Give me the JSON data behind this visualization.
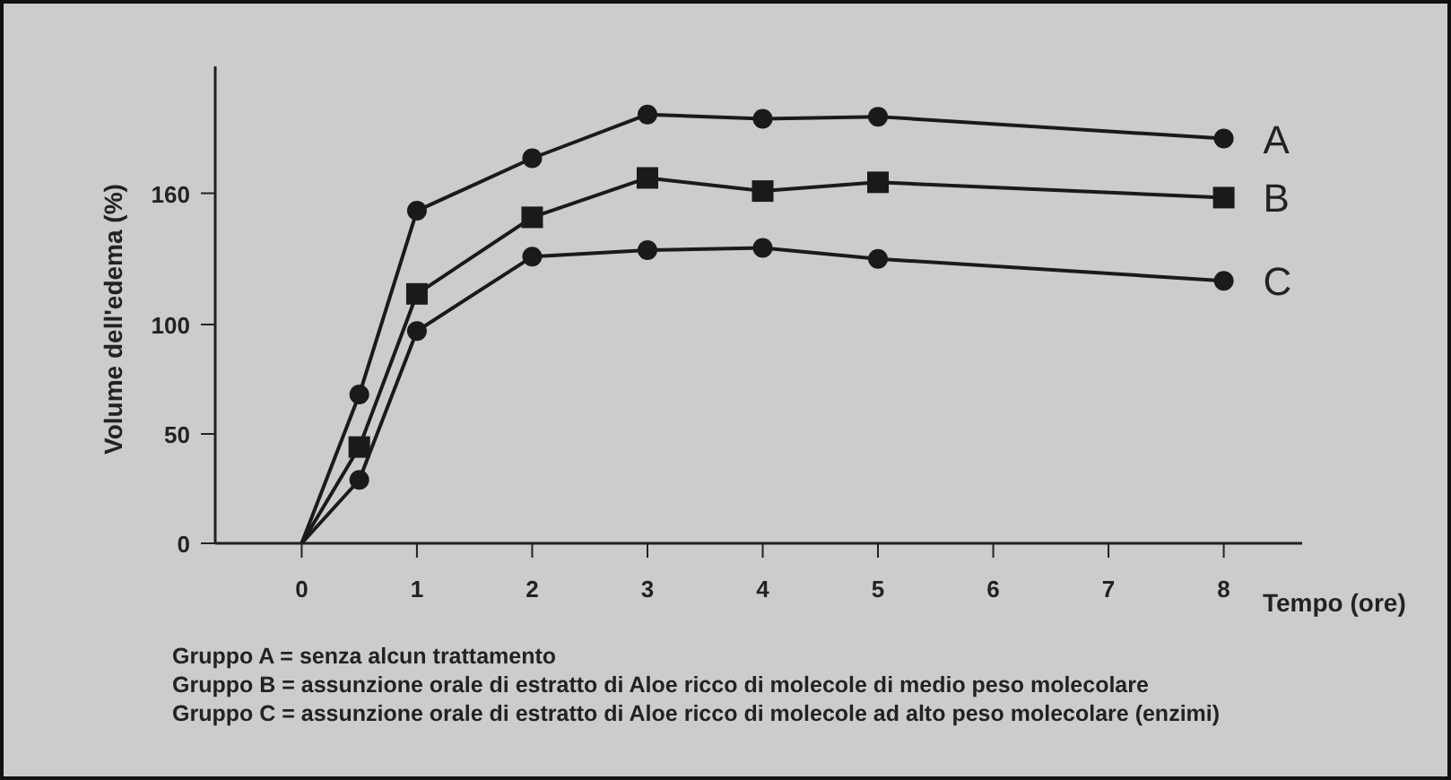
{
  "chart_data": {
    "type": "line",
    "xlabel": "Tempo (ore)",
    "ylabel": "Volume dell'edema (%)",
    "x": [
      0,
      0.5,
      1,
      2,
      3,
      4,
      5,
      8
    ],
    "series": [
      {
        "name": "A",
        "color": "#1a1a1a",
        "marker": "circle",
        "values": [
          0,
          68,
          152,
          176,
          196,
          194,
          195,
          185
        ]
      },
      {
        "name": "B",
        "color": "#1a1a1a",
        "marker": "square",
        "values": [
          0,
          44,
          114,
          149,
          167,
          161,
          165,
          158
        ]
      },
      {
        "name": "C",
        "color": "#1a1a1a",
        "marker": "circle",
        "values": [
          0,
          29,
          97,
          131,
          134,
          135,
          130,
          120
        ]
      }
    ],
    "xlim": [
      -0.75,
      8.68
    ],
    "xticks": [
      0,
      1,
      2,
      3,
      4,
      5,
      6,
      7,
      8
    ],
    "ylim": [
      0,
      218
    ],
    "yticks": [
      0,
      50,
      100,
      160
    ],
    "grid": false,
    "legend": false,
    "annotations": [
      "Gruppo A = senza alcun trattamento",
      "Gruppo B = assunzione orale di estratto di Aloe ricco di molecole di medio peso molecolare",
      "Gruppo C = assunzione orale di estratto di Aloe ricco di molecole ad alto peso molecolare (enzimi)"
    ]
  }
}
